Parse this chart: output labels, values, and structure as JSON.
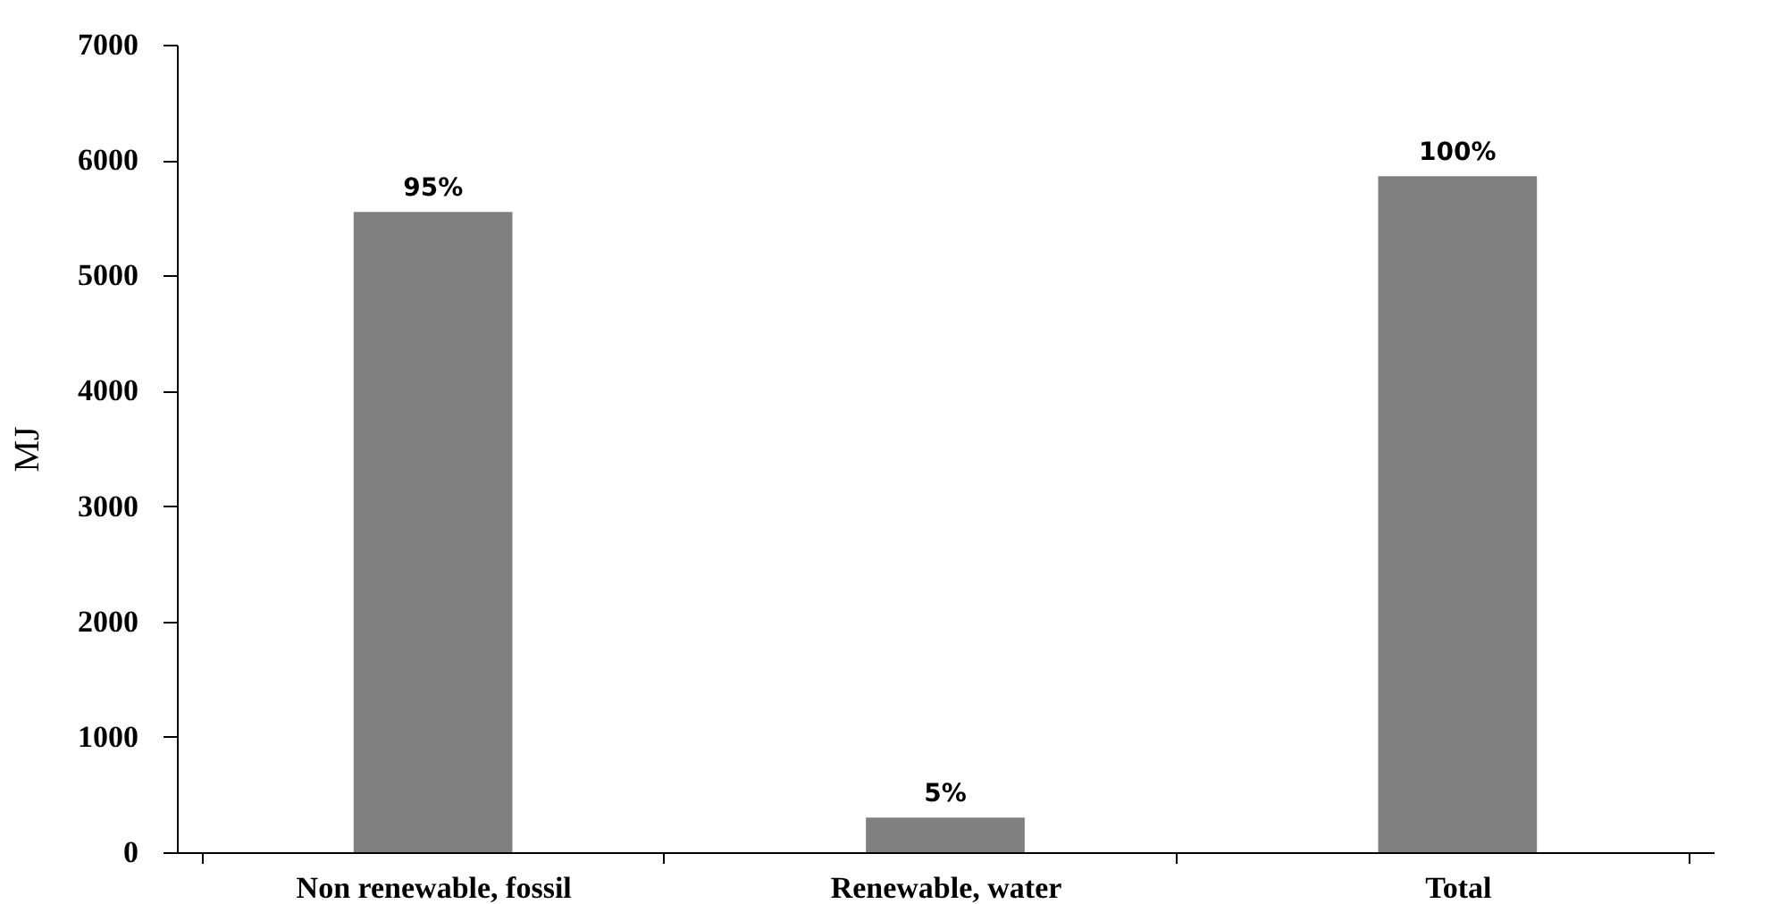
{
  "chart_data": {
    "type": "bar",
    "ylabel": "MJ",
    "categories": [
      "Non renewable, fossil",
      "Renewable, water",
      "Total"
    ],
    "values": [
      5550,
      300,
      5860
    ],
    "color": "#808080",
    "annotations": [
      {
        "text": "95%",
        "x": "Non renewable, fossil",
        "y": 5550
      },
      {
        "text": "5%",
        "x": "Renewable, water",
        "y": 300
      },
      {
        "text": "100%",
        "x": "Total",
        "y": 5860
      }
    ],
    "ylim": [
      0,
      7000
    ],
    "yticks": [
      0,
      1000,
      2000,
      3000,
      4000,
      5000,
      6000,
      7000
    ],
    "grid": false
  }
}
